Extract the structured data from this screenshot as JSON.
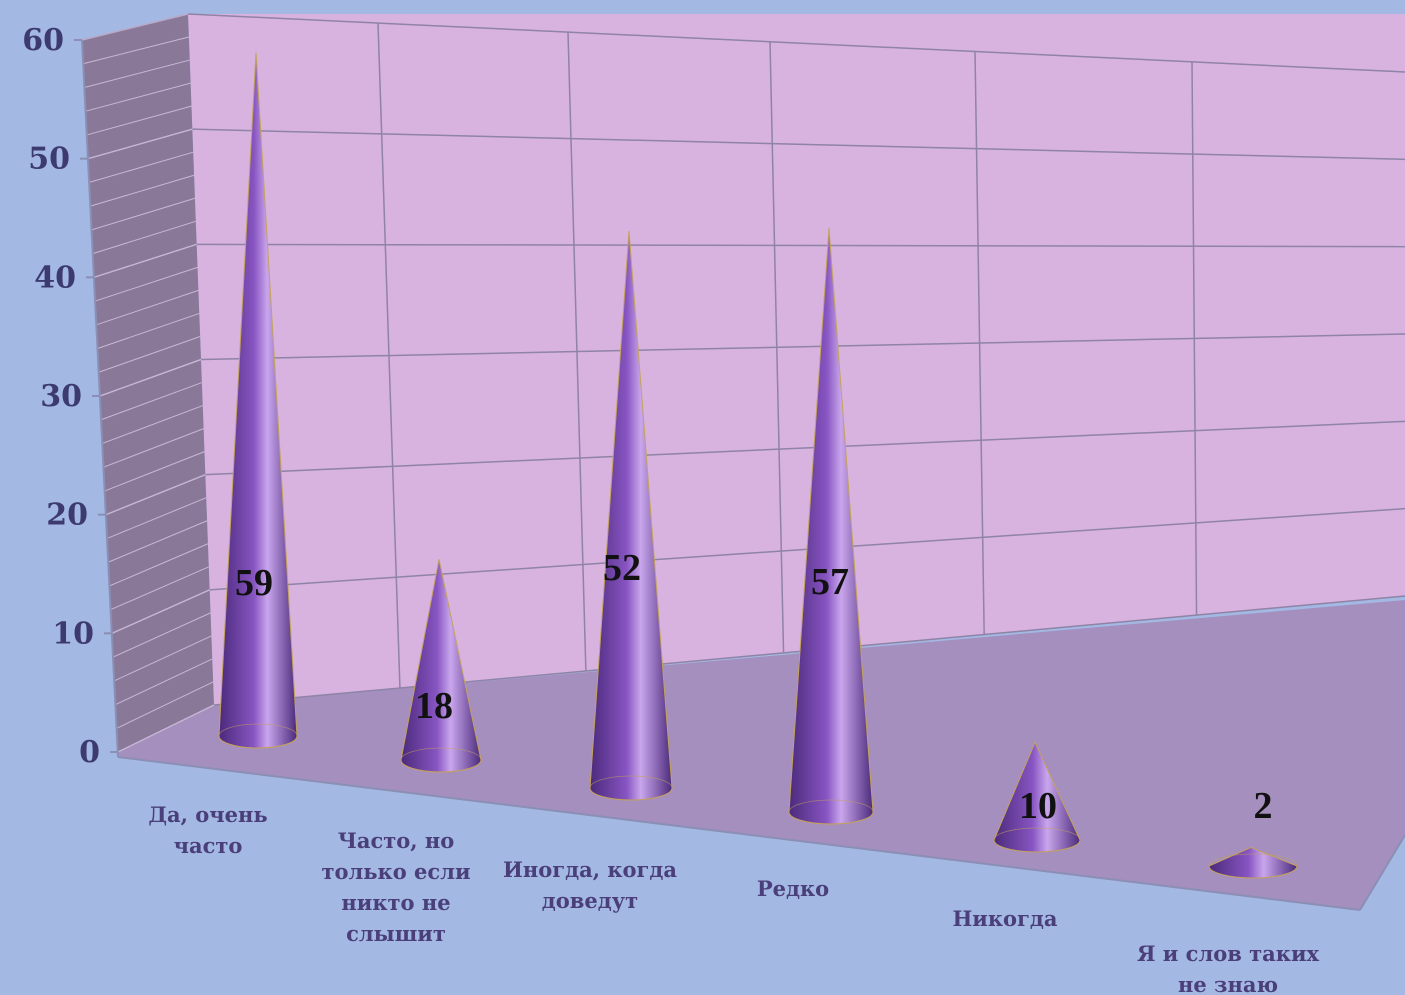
{
  "chart_data": {
    "type": "bar",
    "bar_shape": "cone-3d",
    "categories": [
      [
        "Да, очень",
        "часто"
      ],
      [
        "Часто, но",
        "только если",
        "никто не",
        "слышит"
      ],
      [
        "Иногда, когда",
        "доведут"
      ],
      [
        "Редко"
      ],
      [
        "Никогда"
      ],
      [
        "Я и слов таких",
        "не знаю"
      ]
    ],
    "values": [
      59,
      18,
      52,
      57,
      10,
      2
    ],
    "data_labels": [
      "59",
      "18",
      "52",
      "57",
      "10",
      "2"
    ],
    "yticks": [
      "0",
      "10",
      "20",
      "30",
      "40",
      "50",
      "60"
    ],
    "ylim": [
      0,
      60
    ],
    "title": "",
    "xlabel": "",
    "ylabel": "",
    "grid": true,
    "legend": "none",
    "colors": {
      "background": "#a3b8e2",
      "back_wall": "#d8b3e0",
      "floor": "#a48fbf",
      "side_wall": "#8a7898",
      "gridline": "#8f83a6",
      "cone_dark": "#4b2a7c",
      "cone_mid": "#8855c2",
      "cone_light": "#c9a6ec",
      "cone_base": "#9c72d3",
      "tick_text": "#3c3a6e",
      "category_text": "#4a3f7a",
      "data_label_text": "#111111"
    }
  }
}
